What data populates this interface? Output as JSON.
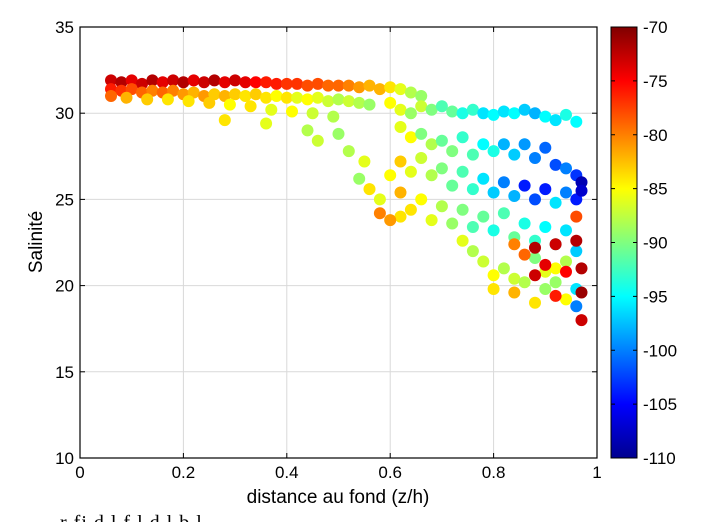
{
  "chart_data": {
    "type": "scatter",
    "title": "",
    "xlabel": "distance au fond (z/h)",
    "ylabel": "Salinité",
    "xlim": [
      0,
      1
    ],
    "ylim": [
      10,
      35
    ],
    "xticks": [
      "0",
      "0.2",
      "0.4",
      "0.6",
      "0.8",
      "1"
    ],
    "yticks": [
      "10",
      "15",
      "20",
      "25",
      "30",
      "35"
    ],
    "grid": true,
    "colorbar": {
      "range": [
        -110,
        -70
      ],
      "ticks": [
        "-70",
        "-75",
        "-80",
        "-85",
        "-90",
        "-95",
        "-100",
        "-105",
        "-110"
      ],
      "colormap": "jet",
      "placement": "right"
    },
    "series": [
      {
        "points": [
          [
            0.06,
            31.9,
            -73
          ],
          [
            0.08,
            31.8,
            -72
          ],
          [
            0.1,
            31.9,
            -74
          ],
          [
            0.12,
            31.7,
            -73
          ],
          [
            0.14,
            31.9,
            -72
          ],
          [
            0.16,
            31.8,
            -74
          ],
          [
            0.18,
            31.9,
            -73
          ],
          [
            0.2,
            31.8,
            -72
          ],
          [
            0.22,
            31.9,
            -74
          ],
          [
            0.24,
            31.8,
            -73
          ],
          [
            0.26,
            31.9,
            -72
          ],
          [
            0.28,
            31.8,
            -74
          ],
          [
            0.3,
            31.9,
            -73
          ],
          [
            0.32,
            31.8,
            -74
          ],
          [
            0.34,
            31.8,
            -75
          ],
          [
            0.36,
            31.8,
            -76
          ],
          [
            0.38,
            31.7,
            -76
          ],
          [
            0.4,
            31.7,
            -77
          ],
          [
            0.42,
            31.7,
            -77
          ],
          [
            0.44,
            31.6,
            -78
          ],
          [
            0.46,
            31.7,
            -78
          ],
          [
            0.48,
            31.6,
            -79
          ],
          [
            0.5,
            31.6,
            -79
          ],
          [
            0.52,
            31.6,
            -80
          ],
          [
            0.54,
            31.5,
            -81
          ],
          [
            0.56,
            31.6,
            -82
          ],
          [
            0.58,
            31.4,
            -82
          ],
          [
            0.6,
            31.5,
            -84
          ],
          [
            0.62,
            31.4,
            -86
          ],
          [
            0.64,
            31.2,
            -88
          ],
          [
            0.66,
            31.0,
            -89
          ],
          [
            0.06,
            31.4,
            -76
          ],
          [
            0.08,
            31.3,
            -77
          ],
          [
            0.1,
            31.4,
            -78
          ],
          [
            0.12,
            31.2,
            -79
          ],
          [
            0.14,
            31.3,
            -80
          ],
          [
            0.16,
            31.2,
            -79
          ],
          [
            0.18,
            31.3,
            -80
          ],
          [
            0.2,
            31.1,
            -81
          ],
          [
            0.22,
            31.2,
            -82
          ],
          [
            0.24,
            31.0,
            -81
          ],
          [
            0.26,
            31.1,
            -83
          ],
          [
            0.28,
            31.0,
            -82
          ],
          [
            0.3,
            31.1,
            -83
          ],
          [
            0.32,
            31.0,
            -84
          ],
          [
            0.34,
            31.1,
            -83
          ],
          [
            0.36,
            30.9,
            -84
          ],
          [
            0.38,
            31.0,
            -85
          ],
          [
            0.4,
            30.9,
            -84
          ],
          [
            0.42,
            30.9,
            -86
          ],
          [
            0.44,
            30.8,
            -85
          ],
          [
            0.46,
            30.9,
            -86
          ],
          [
            0.48,
            30.7,
            -87
          ],
          [
            0.5,
            30.8,
            -88
          ],
          [
            0.52,
            30.7,
            -87
          ],
          [
            0.54,
            30.6,
            -88
          ],
          [
            0.56,
            30.5,
            -89
          ],
          [
            0.06,
            31.0,
            -79
          ],
          [
            0.09,
            30.9,
            -82
          ],
          [
            0.13,
            30.8,
            -83
          ],
          [
            0.17,
            30.8,
            -84
          ],
          [
            0.21,
            30.7,
            -84
          ],
          [
            0.25,
            30.6,
            -83
          ],
          [
            0.29,
            30.5,
            -85
          ],
          [
            0.33,
            30.4,
            -84
          ],
          [
            0.37,
            30.2,
            -86
          ],
          [
            0.41,
            30.1,
            -85
          ],
          [
            0.45,
            30.0,
            -87
          ],
          [
            0.49,
            29.8,
            -88
          ],
          [
            0.28,
            29.6,
            -84
          ],
          [
            0.36,
            29.4,
            -86
          ],
          [
            0.44,
            29.0,
            -88
          ],
          [
            0.46,
            28.4,
            -87
          ],
          [
            0.5,
            28.8,
            -89
          ],
          [
            0.52,
            27.8,
            -88
          ],
          [
            0.55,
            27.2,
            -86
          ],
          [
            0.54,
            26.2,
            -89
          ],
          [
            0.56,
            25.6,
            -84
          ],
          [
            0.58,
            25.0,
            -86
          ],
          [
            0.6,
            26.4,
            -85
          ],
          [
            0.58,
            24.2,
            -80
          ],
          [
            0.62,
            25.4,
            -82
          ],
          [
            0.62,
            24.0,
            -84
          ],
          [
            0.6,
            23.8,
            -81
          ],
          [
            0.6,
            30.6,
            -85
          ],
          [
            0.62,
            30.2,
            -86
          ],
          [
            0.64,
            30.0,
            -89
          ],
          [
            0.66,
            30.4,
            -87
          ],
          [
            0.68,
            30.2,
            -90
          ],
          [
            0.7,
            30.4,
            -92
          ],
          [
            0.72,
            30.1,
            -91
          ],
          [
            0.74,
            30.0,
            -94
          ],
          [
            0.76,
            30.2,
            -93
          ],
          [
            0.78,
            30.0,
            -96
          ],
          [
            0.8,
            29.9,
            -95
          ],
          [
            0.82,
            30.1,
            -96
          ],
          [
            0.84,
            30.0,
            -95
          ],
          [
            0.86,
            30.2,
            -97
          ],
          [
            0.88,
            30.0,
            -98
          ],
          [
            0.9,
            29.8,
            -95
          ],
          [
            0.92,
            29.6,
            -96
          ],
          [
            0.94,
            29.9,
            -94
          ],
          [
            0.96,
            29.5,
            -95
          ],
          [
            0.62,
            29.2,
            -86
          ],
          [
            0.64,
            28.6,
            -85
          ],
          [
            0.66,
            28.8,
            -90
          ],
          [
            0.68,
            28.2,
            -88
          ],
          [
            0.7,
            28.4,
            -91
          ],
          [
            0.72,
            27.8,
            -90
          ],
          [
            0.74,
            28.6,
            -93
          ],
          [
            0.76,
            27.6,
            -92
          ],
          [
            0.78,
            28.2,
            -95
          ],
          [
            0.8,
            27.8,
            -94
          ],
          [
            0.82,
            28.2,
            -98
          ],
          [
            0.84,
            27.6,
            -97
          ],
          [
            0.86,
            28.2,
            -99
          ],
          [
            0.88,
            27.4,
            -100
          ],
          [
            0.9,
            28.0,
            -101
          ],
          [
            0.92,
            27.0,
            -102
          ],
          [
            0.94,
            26.8,
            -100
          ],
          [
            0.96,
            26.4,
            -103
          ],
          [
            0.97,
            26.0,
            -108
          ],
          [
            0.62,
            27.2,
            -83
          ],
          [
            0.64,
            26.6,
            -86
          ],
          [
            0.66,
            27.4,
            -87
          ],
          [
            0.68,
            26.4,
            -88
          ],
          [
            0.7,
            26.8,
            -90
          ],
          [
            0.72,
            25.8,
            -91
          ],
          [
            0.74,
            26.6,
            -92
          ],
          [
            0.76,
            25.6,
            -93
          ],
          [
            0.78,
            26.2,
            -96
          ],
          [
            0.8,
            25.4,
            -97
          ],
          [
            0.82,
            26.0,
            -100
          ],
          [
            0.84,
            25.2,
            -98
          ],
          [
            0.86,
            25.8,
            -104
          ],
          [
            0.88,
            25.0,
            -102
          ],
          [
            0.9,
            25.6,
            -104
          ],
          [
            0.92,
            24.8,
            -96
          ],
          [
            0.94,
            25.4,
            -100
          ],
          [
            0.96,
            25.0,
            -104
          ],
          [
            0.97,
            25.5,
            -107
          ],
          [
            0.64,
            24.4,
            -84
          ],
          [
            0.66,
            25.0,
            -85
          ],
          [
            0.68,
            23.8,
            -86
          ],
          [
            0.7,
            24.6,
            -88
          ],
          [
            0.72,
            23.6,
            -89
          ],
          [
            0.74,
            24.4,
            -90
          ],
          [
            0.76,
            23.4,
            -92
          ],
          [
            0.78,
            24.0,
            -91
          ],
          [
            0.8,
            23.2,
            -94
          ],
          [
            0.82,
            24.2,
            -92
          ],
          [
            0.84,
            22.8,
            -91
          ],
          [
            0.86,
            23.6,
            -94
          ],
          [
            0.88,
            22.6,
            -93
          ],
          [
            0.9,
            23.4,
            -95
          ],
          [
            0.92,
            22.4,
            -94
          ],
          [
            0.94,
            23.2,
            -96
          ],
          [
            0.96,
            22.0,
            -97
          ],
          [
            0.74,
            22.6,
            -86
          ],
          [
            0.76,
            22.0,
            -88
          ],
          [
            0.78,
            21.4,
            -87
          ],
          [
            0.8,
            20.6,
            -85
          ],
          [
            0.8,
            19.8,
            -84
          ],
          [
            0.82,
            21.0,
            -88
          ],
          [
            0.84,
            20.4,
            -87
          ],
          [
            0.84,
            19.6,
            -82
          ],
          [
            0.86,
            20.2,
            -88
          ],
          [
            0.88,
            21.6,
            -90
          ],
          [
            0.88,
            19.0,
            -84
          ],
          [
            0.9,
            20.8,
            -86
          ],
          [
            0.9,
            19.8,
            -89
          ],
          [
            0.92,
            21.0,
            -85
          ],
          [
            0.92,
            20.2,
            -89
          ],
          [
            0.94,
            21.4,
            -88
          ],
          [
            0.94,
            19.2,
            -85
          ],
          [
            0.96,
            19.8,
            -96
          ],
          [
            0.96,
            18.8,
            -100
          ],
          [
            0.88,
            22.2,
            -72
          ],
          [
            0.88,
            20.6,
            -73
          ],
          [
            0.9,
            21.2,
            -74
          ],
          [
            0.92,
            22.4,
            -73
          ],
          [
            0.92,
            19.4,
            -76
          ],
          [
            0.94,
            20.8,
            -75
          ],
          [
            0.96,
            22.6,
            -72
          ],
          [
            0.97,
            21.0,
            -72
          ],
          [
            0.97,
            19.6,
            -71
          ],
          [
            0.97,
            18.0,
            -73
          ],
          [
            0.96,
            24.0,
            -78
          ],
          [
            0.84,
            22.4,
            -80
          ],
          [
            0.86,
            21.8,
            -79
          ]
        ]
      }
    ]
  },
  "footer_text": "r  fi  d  l    f              l  d  l  b   l"
}
